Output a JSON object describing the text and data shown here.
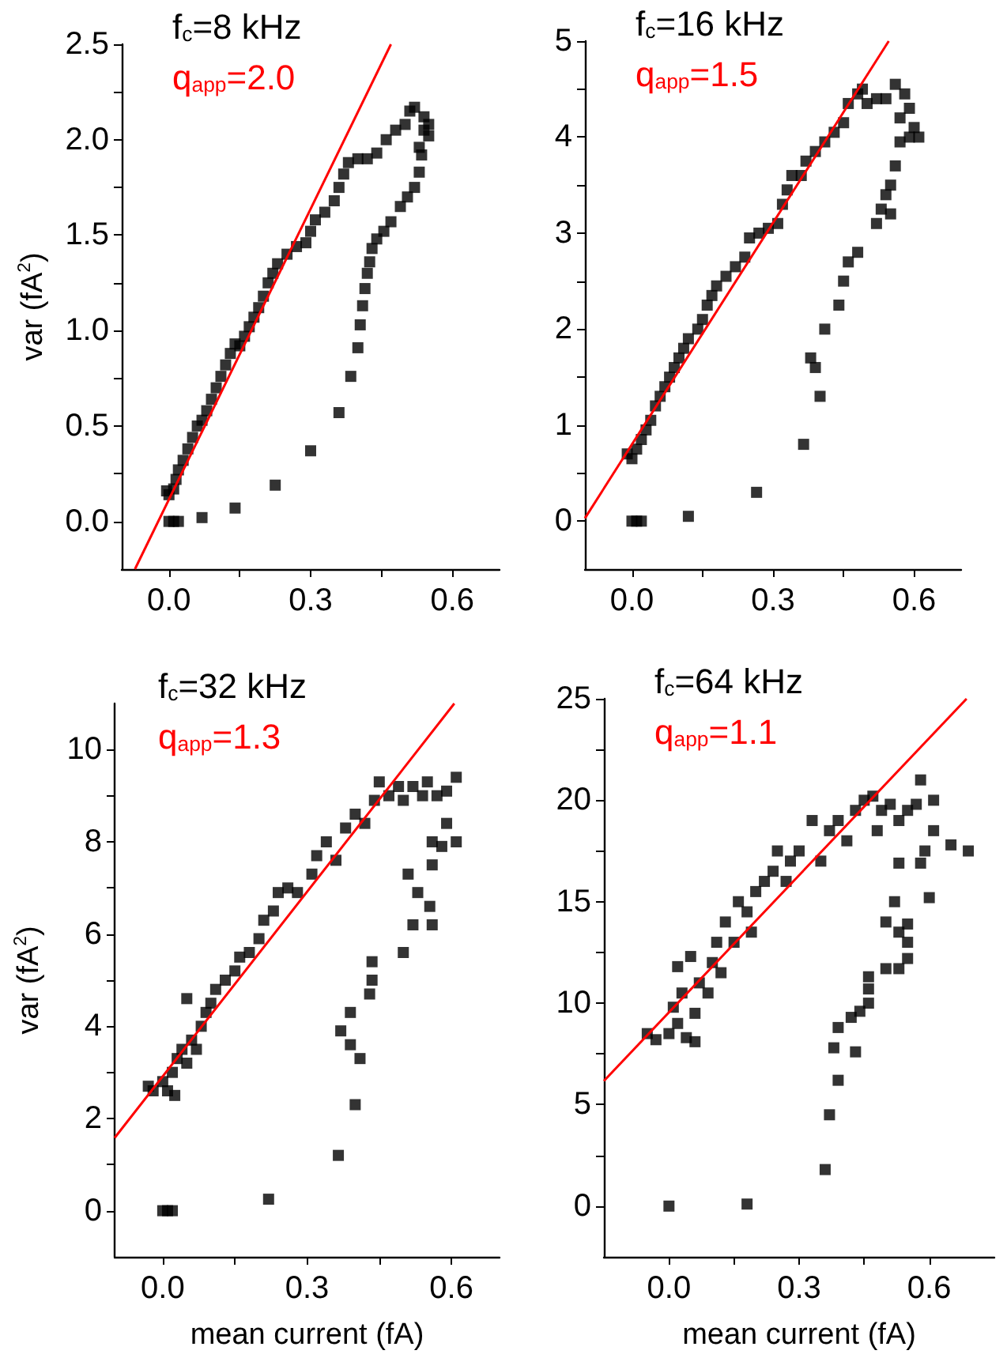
{
  "chart_data": [
    {
      "type": "scatter",
      "ylabel": "var (fA$^{2}$)",
      "annotations": [
        "f$_{c}$=8 kHz",
        "q$_{app}$=2.0"
      ],
      "marker": "square",
      "grid": false,
      "xlim": [
        -0.1,
        0.7
      ],
      "ylim": [
        -0.25,
        2.5
      ],
      "xticks": [
        {
          "value": 0,
          "label": "0.0"
        },
        {
          "value": 0.15,
          "label": null
        },
        {
          "value": 0.3,
          "label": "0.3"
        },
        {
          "value": 0.45,
          "label": null
        },
        {
          "value": 0.6,
          "label": "0.6"
        }
      ],
      "yticks": [
        {
          "value": 0,
          "label": "0.0"
        },
        {
          "value": 0.25,
          "label": null
        },
        {
          "value": 0.5,
          "label": "0.5"
        },
        {
          "value": 0.75,
          "label": null
        },
        {
          "value": 1,
          "label": "1.0"
        },
        {
          "value": 1.25,
          "label": null
        },
        {
          "value": 1.5,
          "label": "1.5"
        },
        {
          "value": 1.75,
          "label": null
        },
        {
          "value": 2,
          "label": "2.0"
        },
        {
          "value": 2.25,
          "label": null
        },
        {
          "value": 2.5,
          "label": "2.5"
        }
      ],
      "series": [
        {
          "color": "#000000",
          "x": [
            0.0,
            0.01,
            0.02,
            0.07,
            0.14,
            0.225,
            0.3,
            0.36,
            0.385,
            0.4,
            0.405,
            0.41,
            0.415,
            0.42,
            0.425,
            0.43,
            0.44,
            0.455,
            0.47,
            0.49,
            0.505,
            0.52,
            0.53,
            0.535,
            0.53,
            -0.005,
            0.0,
            0.01,
            0.015,
            0.02,
            0.03,
            0.04,
            0.05,
            0.06,
            0.07,
            0.08,
            0.09,
            0.1,
            0.11,
            0.12,
            0.13,
            0.14,
            0.15,
            0.16,
            0.17,
            0.18,
            0.19,
            0.2,
            0.21,
            0.22,
            0.23,
            0.25,
            0.27,
            0.29,
            0.3,
            0.31,
            0.33,
            0.35,
            0.36,
            0.37,
            0.38,
            0.4,
            0.42,
            0.44,
            0.46,
            0.48,
            0.5,
            0.51,
            0.52,
            0.54,
            0.55,
            0.55,
            0.54
          ],
          "values": [
            0.0,
            0.0,
            0.0,
            0.02,
            0.07,
            0.19,
            0.37,
            0.57,
            0.76,
            0.91,
            1.03,
            1.13,
            1.22,
            1.3,
            1.36,
            1.43,
            1.48,
            1.52,
            1.57,
            1.65,
            1.7,
            1.75,
            1.83,
            1.92,
            1.96,
            0.16,
            0.14,
            0.17,
            0.22,
            0.27,
            0.32,
            0.38,
            0.44,
            0.5,
            0.53,
            0.58,
            0.64,
            0.7,
            0.76,
            0.82,
            0.88,
            0.93,
            0.92,
            0.97,
            1.02,
            1.07,
            1.12,
            1.18,
            1.25,
            1.3,
            1.35,
            1.4,
            1.44,
            1.46,
            1.52,
            1.58,
            1.62,
            1.68,
            1.75,
            1.82,
            1.88,
            1.9,
            1.9,
            1.93,
            2.0,
            2.05,
            2.08,
            2.15,
            2.17,
            2.12,
            2.08,
            2.02,
            2.05
          ]
        },
        {
          "type": "line",
          "color": "#ff0000",
          "marker": "none",
          "x": [
            -0.072,
            0.47
          ],
          "values": [
            -0.25,
            2.5
          ]
        }
      ]
    },
    {
      "type": "scatter",
      "annotations": [
        "f$_{c}$=16 kHz",
        "q$_{app}$=1.5"
      ],
      "marker": "square",
      "grid": false,
      "xlim": [
        -0.1,
        0.7
      ],
      "ylim": [
        -0.5,
        5
      ],
      "xticks": [
        {
          "value": 0,
          "label": "0.0"
        },
        {
          "value": 0.15,
          "label": null
        },
        {
          "value": 0.3,
          "label": "0.3"
        },
        {
          "value": 0.45,
          "label": null
        },
        {
          "value": 0.6,
          "label": "0.6"
        }
      ],
      "yticks": [
        0,
        {
          "value": 0.5,
          "label": null
        },
        1,
        {
          "value": 1.5,
          "label": null
        },
        2,
        {
          "value": 2.5,
          "label": null
        },
        3,
        {
          "value": 3.5,
          "label": null
        },
        4,
        {
          "value": 4.5,
          "label": null
        },
        5
      ],
      "series": [
        {
          "color": "#000000",
          "x": [
            0.0,
            0.01,
            0.02,
            0.12,
            0.265,
            0.365,
            0.4,
            0.39,
            0.38,
            0.41,
            0.44,
            0.45,
            0.46,
            0.48,
            0.52,
            0.53,
            0.54,
            0.55,
            0.55,
            0.56,
            0.57,
            0.59,
            0.61,
            -0.01,
            0.0,
            0.01,
            0.02,
            0.03,
            0.04,
            0.05,
            0.06,
            0.07,
            0.08,
            0.09,
            0.1,
            0.11,
            0.12,
            0.14,
            0.15,
            0.16,
            0.17,
            0.18,
            0.2,
            0.22,
            0.24,
            0.25,
            0.27,
            0.29,
            0.31,
            0.32,
            0.33,
            0.34,
            0.36,
            0.37,
            0.39,
            0.41,
            0.43,
            0.45,
            0.46,
            0.48,
            0.49,
            0.5,
            0.52,
            0.54,
            0.56,
            0.58,
            0.59,
            0.6,
            0.57
          ],
          "values": [
            0.0,
            0.0,
            0.0,
            0.05,
            0.3,
            0.8,
            1.3,
            1.6,
            1.7,
            2.0,
            2.25,
            2.5,
            2.7,
            2.8,
            3.1,
            3.25,
            3.4,
            3.5,
            3.2,
            3.7,
            3.95,
            4.0,
            4.0,
            0.7,
            0.65,
            0.75,
            0.85,
            0.95,
            1.05,
            1.2,
            1.3,
            1.4,
            1.5,
            1.6,
            1.7,
            1.8,
            1.9,
            2.0,
            2.1,
            2.25,
            2.35,
            2.45,
            2.55,
            2.65,
            2.75,
            2.95,
            3.0,
            3.05,
            3.1,
            3.3,
            3.45,
            3.6,
            3.6,
            3.75,
            3.85,
            3.95,
            4.05,
            4.15,
            4.35,
            4.45,
            4.5,
            4.35,
            4.4,
            4.4,
            4.55,
            4.45,
            4.3,
            4.1,
            4.2
          ]
        },
        {
          "type": "line",
          "color": "#ff0000",
          "marker": "none",
          "x": [
            -0.1,
            0.546
          ],
          "values": [
            0.03,
            5
          ]
        }
      ]
    },
    {
      "type": "scatter",
      "xlabel": "mean current (fA)",
      "ylabel": "var (fA$^{2}$)",
      "annotations": [
        "f$_{c}$=32 kHz",
        "q$_{app}$=1.3"
      ],
      "marker": "square",
      "grid": false,
      "xlim": [
        -0.1,
        0.7
      ],
      "ylim": [
        -1,
        11
      ],
      "xticks": [
        {
          "value": 0,
          "label": "0.0"
        },
        {
          "value": 0.15,
          "label": null
        },
        {
          "value": 0.3,
          "label": "0.3"
        },
        {
          "value": 0.45,
          "label": null
        },
        {
          "value": 0.6,
          "label": "0.6"
        }
      ],
      "yticks": [
        0,
        {
          "value": 1,
          "label": null
        },
        2,
        {
          "value": 3,
          "label": null
        },
        4,
        {
          "value": 5,
          "label": null
        },
        6,
        {
          "value": 7,
          "label": null
        },
        8,
        {
          "value": 9,
          "label": null
        },
        10
      ],
      "series": [
        {
          "color": "#000000",
          "x": [
            0.0,
            0.01,
            0.02,
            0.22,
            0.365,
            0.4,
            0.41,
            0.39,
            0.37,
            0.39,
            0.43,
            0.435,
            0.435,
            0.5,
            0.52,
            0.56,
            0.53,
            0.51,
            0.555,
            0.56,
            0.56,
            0.58,
            0.59,
            0.61,
            -0.03,
            -0.02,
            0.0,
            0.01,
            0.02,
            0.03,
            0.04,
            0.05,
            0.06,
            0.07,
            0.08,
            0.09,
            0.1,
            0.11,
            0.13,
            0.15,
            0.16,
            0.18,
            0.2,
            0.21,
            0.23,
            0.24,
            0.26,
            0.28,
            0.31,
            0.32,
            0.34,
            0.36,
            0.38,
            0.4,
            0.42,
            0.44,
            0.45,
            0.47,
            0.49,
            0.5,
            0.52,
            0.54,
            0.55,
            0.57,
            0.59,
            0.61,
            0.05,
            0.025
          ],
          "values": [
            0.0,
            0.0,
            0.0,
            0.25,
            1.2,
            2.3,
            3.3,
            3.6,
            3.9,
            4.3,
            4.7,
            5.0,
            5.4,
            5.6,
            6.2,
            6.2,
            6.9,
            7.3,
            6.6,
            7.5,
            8.0,
            7.9,
            8.4,
            8.0,
            2.7,
            2.6,
            2.8,
            2.6,
            3.0,
            3.3,
            3.5,
            3.2,
            3.7,
            3.5,
            4.0,
            4.3,
            4.5,
            4.8,
            5.0,
            5.2,
            5.5,
            5.6,
            5.9,
            6.3,
            6.5,
            6.9,
            7.0,
            6.9,
            7.3,
            7.7,
            8.0,
            7.6,
            8.3,
            8.6,
            8.4,
            8.9,
            9.3,
            9.0,
            9.2,
            8.9,
            9.2,
            9.0,
            9.3,
            9.0,
            9.1,
            9.4,
            4.6,
            2.5
          ]
        },
        {
          "type": "line",
          "color": "#ff0000",
          "marker": "none",
          "x": [
            -0.1,
            0.606
          ],
          "values": [
            1.58,
            11
          ]
        }
      ]
    },
    {
      "type": "scatter",
      "xlabel": "mean current (fA)",
      "annotations": [
        "f$_{c}$=64 kHz",
        "q$_{app}$=1.1"
      ],
      "marker": "square",
      "grid": false,
      "xlim": [
        -0.15,
        0.75
      ],
      "ylim": [
        -2.5,
        25
      ],
      "xticks": [
        {
          "value": 0,
          "label": "0.0"
        },
        {
          "value": 0.15,
          "label": null
        },
        {
          "value": 0.3,
          "label": "0.3"
        },
        {
          "value": 0.45,
          "label": null
        },
        {
          "value": 0.6,
          "label": "0.6"
        }
      ],
      "yticks": [
        0,
        {
          "value": 2.5,
          "label": null
        },
        5,
        {
          "value": 7.5,
          "label": null
        },
        10,
        {
          "value": 12.5,
          "label": null
        },
        15,
        {
          "value": 17.5,
          "label": null
        },
        20,
        {
          "value": 22.5,
          "label": null
        },
        25
      ],
      "series": [
        {
          "color": "#000000",
          "x": [
            0.0,
            0.18,
            0.36,
            0.37,
            0.39,
            0.38,
            0.39,
            0.43,
            0.42,
            0.44,
            0.46,
            0.46,
            0.46,
            0.5,
            0.53,
            0.55,
            0.55,
            0.53,
            0.5,
            0.52,
            0.55,
            0.6,
            0.58,
            0.59,
            0.53,
            0.61,
            0.65,
            0.69,
            0.58,
            0.61,
            -0.05,
            -0.03,
            0.0,
            0.02,
            0.01,
            0.03,
            0.02,
            0.05,
            0.06,
            0.07,
            0.09,
            0.1,
            0.11,
            0.12,
            0.13,
            0.15,
            0.16,
            0.18,
            0.19,
            0.2,
            0.22,
            0.24,
            0.25,
            0.27,
            0.28,
            0.3,
            0.33,
            0.35,
            0.37,
            0.39,
            0.41,
            0.43,
            0.45,
            0.47,
            0.49,
            0.51,
            0.53,
            0.55,
            0.57,
            0.48,
            0.04,
            0.06
          ],
          "values": [
            0.0,
            0.1,
            1.8,
            4.5,
            6.2,
            7.8,
            8.8,
            7.6,
            9.3,
            9.6,
            10.0,
            10.7,
            11.3,
            11.7,
            11.7,
            12.2,
            13.0,
            13.5,
            14.0,
            15.0,
            13.9,
            15.2,
            16.9,
            17.5,
            16.9,
            18.5,
            17.8,
            17.5,
            21.0,
            20.0,
            8.5,
            8.2,
            8.5,
            9.0,
            9.8,
            10.5,
            11.8,
            12.3,
            9.5,
            11.0,
            10.5,
            12.0,
            13.0,
            11.5,
            14.0,
            13.0,
            15.0,
            14.5,
            13.5,
            15.5,
            16.0,
            16.5,
            17.5,
            16.0,
            17.0,
            17.5,
            19.0,
            17.0,
            18.5,
            19.0,
            18.0,
            19.5,
            20.0,
            20.2,
            19.5,
            19.8,
            19.0,
            19.5,
            19.8,
            18.5,
            8.3,
            8.1
          ]
        },
        {
          "type": "line",
          "color": "#ff0000",
          "marker": "none",
          "x": [
            -0.15,
            0.686
          ],
          "values": [
            6.17,
            25
          ]
        }
      ]
    }
  ]
}
